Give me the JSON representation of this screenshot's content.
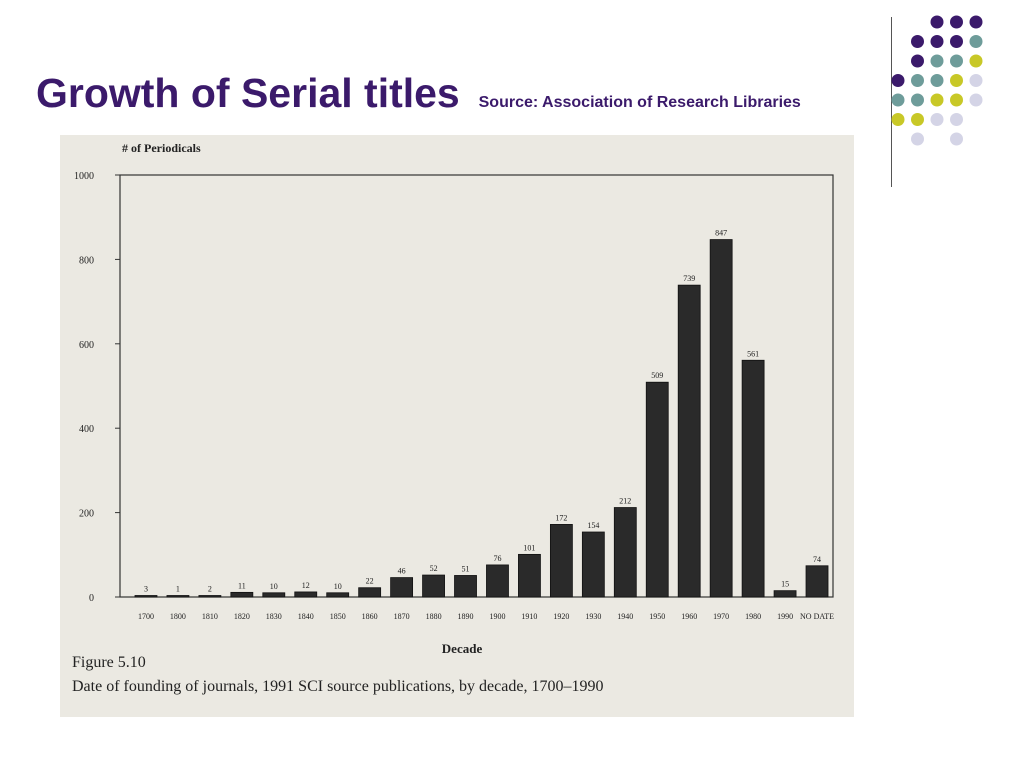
{
  "slide": {
    "title": "Growth of Serial titles",
    "source": "Source: Association of Research Libraries"
  },
  "decoration": {
    "dot_colors": [
      "#3b1a6b",
      "#6e9c9a",
      "#c8c827",
      "#d4d4e6"
    ]
  },
  "chart_data": {
    "type": "bar",
    "ylabel": "# of Periodicals",
    "xlabel": "Decade",
    "ylim": [
      0,
      1000
    ],
    "yticks": [
      0,
      200,
      400,
      600,
      800,
      1000
    ],
    "categories": [
      "1700",
      "1800",
      "1810",
      "1820",
      "1830",
      "1840",
      "1850",
      "1860",
      "1870",
      "1880",
      "1890",
      "1900",
      "1910",
      "1920",
      "1930",
      "1940",
      "1950",
      "1960",
      "1970",
      "1980",
      "1990",
      "NO DATE"
    ],
    "values": [
      3,
      1,
      2,
      11,
      10,
      12,
      10,
      22,
      46,
      52,
      51,
      76,
      101,
      172,
      154,
      212,
      509,
      739,
      847,
      561,
      15,
      74
    ],
    "caption_number": "Figure 5.10",
    "caption_text": "Date of founding of journals, 1991 SCI source publications, by decade, 1700–1990",
    "bar_color": "#2a2a2a",
    "grid": false
  }
}
